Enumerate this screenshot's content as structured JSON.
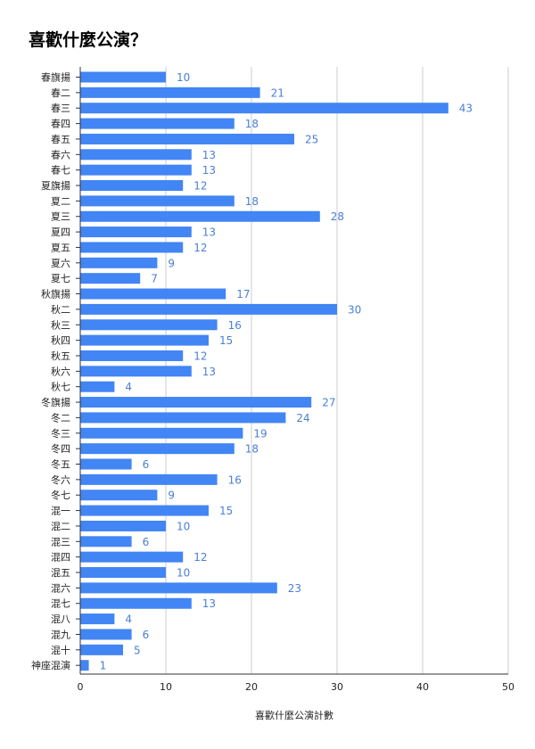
{
  "chart_data": {
    "type": "bar",
    "orientation": "horizontal",
    "title": "喜歡什麼公演？",
    "xlabel": "喜歡什麼公演計數",
    "ylabel": "",
    "xlim": [
      0,
      50
    ],
    "xticks": [
      0,
      10,
      20,
      30,
      40,
      50
    ],
    "grid": "vertical",
    "legend": "none",
    "bar_color": "#4285f4",
    "label_color": "#4a7fd6",
    "categories": [
      "春旗揚",
      "春二",
      "春三",
      "春四",
      "春五",
      "春六",
      "春七",
      "夏旗揚",
      "夏二",
      "夏三",
      "夏四",
      "夏五",
      "夏六",
      "夏七",
      "秋旗揚",
      "秋二",
      "秋三",
      "秋四",
      "秋五",
      "秋六",
      "秋七",
      "冬旗揚",
      "冬二",
      "冬三",
      "冬四",
      "冬五",
      "冬六",
      "冬七",
      "混一",
      "混二",
      "混三",
      "混四",
      "混五",
      "混六",
      "混七",
      "混八",
      "混九",
      "混十",
      "神座混演"
    ],
    "values": [
      10,
      21,
      43,
      18,
      25,
      13,
      13,
      12,
      18,
      28,
      13,
      12,
      9,
      7,
      17,
      30,
      16,
      15,
      12,
      13,
      4,
      27,
      24,
      19,
      18,
      6,
      16,
      9,
      15,
      10,
      6,
      12,
      10,
      23,
      13,
      4,
      6,
      5,
      1
    ]
  }
}
